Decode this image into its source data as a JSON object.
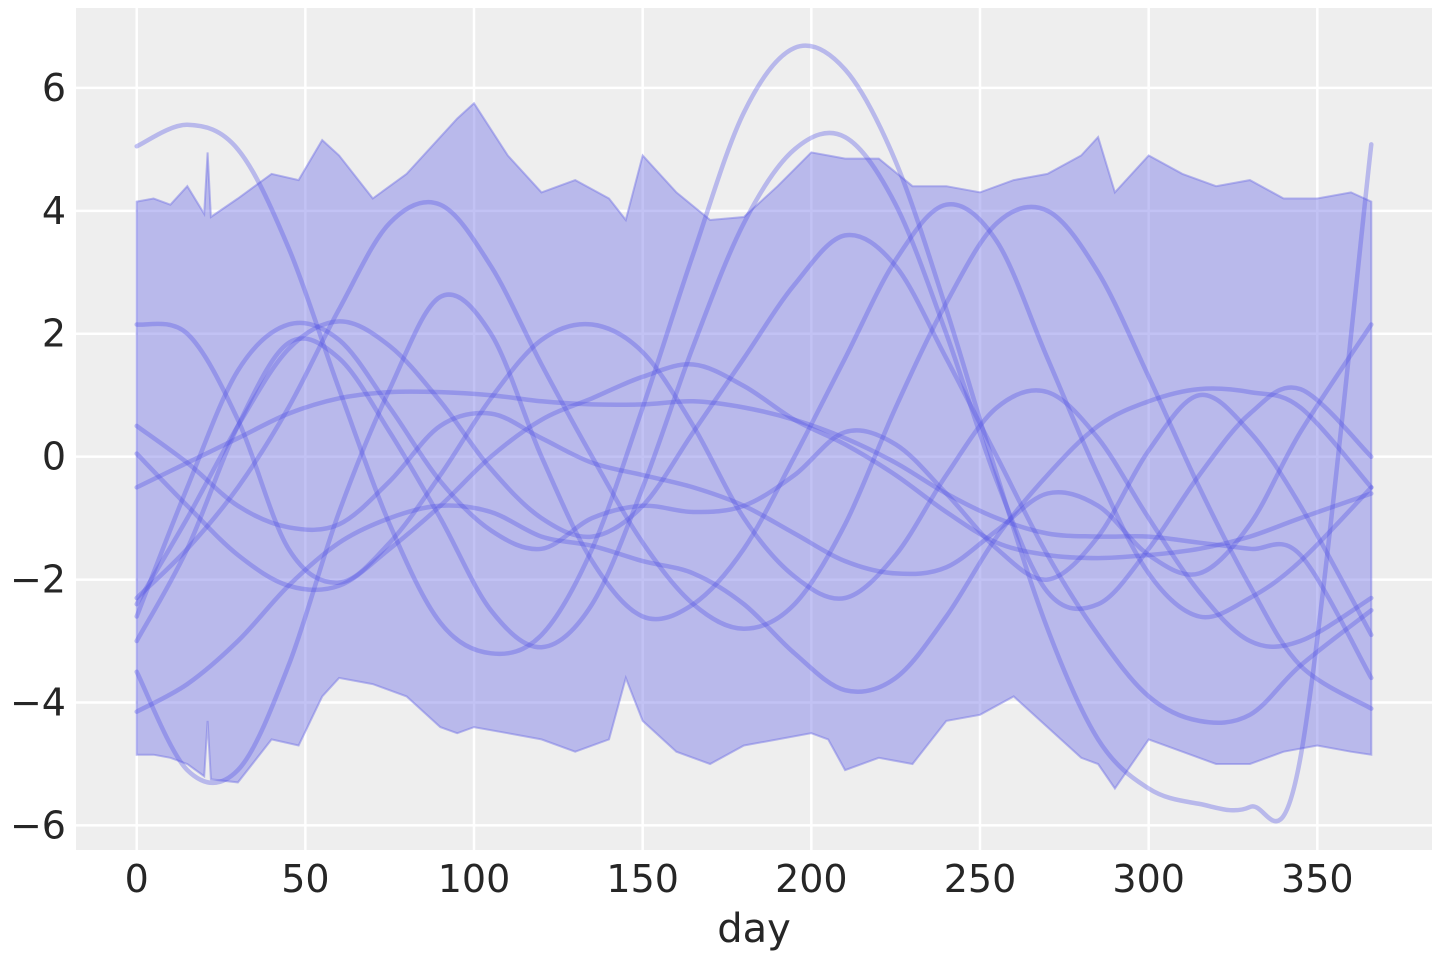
{
  "chart_data": {
    "type": "line",
    "title": "",
    "xlabel": "day",
    "ylabel": "",
    "xlim": [
      -18,
      384
    ],
    "ylim": [
      -6.4,
      7.3
    ],
    "x_ticks": [
      0,
      50,
      100,
      150,
      200,
      250,
      300,
      350
    ],
    "y_ticks": [
      -6,
      -4,
      -2,
      0,
      2,
      4,
      6
    ],
    "grid": true,
    "background": "#EEEEEE",
    "grid_color": "#FFFFFF",
    "series_color": "#5252E6",
    "band_color": "#7878E6",
    "band": {
      "x": [
        0,
        5,
        10,
        15,
        20,
        21,
        22,
        30,
        40,
        48,
        55,
        60,
        70,
        80,
        90,
        95,
        100,
        110,
        120,
        130,
        140,
        145,
        150,
        160,
        170,
        180,
        190,
        200,
        205,
        210,
        220,
        230,
        240,
        250,
        260,
        270,
        280,
        285,
        290,
        300,
        310,
        320,
        330,
        340,
        350,
        360,
        366
      ],
      "upper": [
        4.15,
        4.2,
        4.1,
        4.4,
        3.95,
        4.95,
        3.9,
        4.2,
        4.6,
        4.5,
        5.15,
        4.9,
        4.2,
        4.6,
        5.2,
        5.5,
        5.75,
        4.9,
        4.3,
        4.5,
        4.2,
        3.85,
        4.9,
        4.3,
        3.85,
        3.9,
        4.4,
        4.95,
        4.9,
        4.85,
        4.85,
        4.4,
        4.4,
        4.3,
        4.5,
        4.6,
        4.9,
        5.2,
        4.3,
        4.9,
        4.6,
        4.4,
        4.5,
        4.2,
        4.2,
        4.3,
        4.15
      ],
      "lower": [
        -4.85,
        -4.85,
        -4.9,
        -5.0,
        -5.2,
        -4.3,
        -5.25,
        -5.3,
        -4.6,
        -4.7,
        -3.9,
        -3.6,
        -3.7,
        -3.9,
        -4.4,
        -4.5,
        -4.4,
        -4.5,
        -4.6,
        -4.8,
        -4.6,
        -3.6,
        -4.3,
        -4.8,
        -5.0,
        -4.7,
        -4.6,
        -4.5,
        -4.6,
        -5.1,
        -4.9,
        -5.0,
        -4.3,
        -4.2,
        -3.9,
        -4.4,
        -4.9,
        -5.0,
        -5.4,
        -4.6,
        -4.8,
        -5.0,
        -5.0,
        -4.8,
        -4.7,
        -4.8,
        -4.85
      ]
    },
    "x": [
      0,
      15,
      30,
      45,
      60,
      75,
      90,
      105,
      120,
      135,
      150,
      165,
      180,
      195,
      210,
      225,
      240,
      255,
      270,
      285,
      300,
      315,
      330,
      345,
      366
    ],
    "series": [
      {
        "values": [
          5.05,
          5.4,
          5.0,
          3.4,
          1.1,
          -1.1,
          -2.7,
          -3.2,
          -2.9,
          -1.5,
          0.8,
          3.3,
          5.6,
          6.65,
          6.3,
          4.8,
          2.4,
          -0.3,
          -2.8,
          -4.6,
          -5.4,
          -5.65,
          -5.7,
          -4.9,
          5.08
        ]
      },
      {
        "values": [
          -3.5,
          -5.1,
          -5.1,
          -3.4,
          -0.9,
          1.1,
          2.6,
          2.0,
          0.0,
          -1.7,
          -2.6,
          -2.4,
          -1.5,
          0.0,
          1.6,
          3.2,
          4.1,
          3.5,
          1.6,
          -0.3,
          -1.9,
          -2.6,
          -2.3,
          -1.7,
          -0.5
        ]
      },
      {
        "values": [
          2.15,
          2.0,
          0.6,
          -1.5,
          -2.05,
          -1.4,
          -0.3,
          0.95,
          1.9,
          2.15,
          1.7,
          0.5,
          -1.0,
          -1.95,
          -2.3,
          -1.6,
          -0.3,
          0.8,
          1.05,
          0.3,
          -1.0,
          -2.2,
          -3.0,
          -3.0,
          -2.3
        ]
      },
      {
        "values": [
          0.5,
          -0.1,
          -0.8,
          -1.15,
          -1.1,
          -0.4,
          0.5,
          0.7,
          0.3,
          -0.1,
          -0.3,
          -0.5,
          -0.8,
          -1.25,
          -1.7,
          -1.9,
          -1.8,
          -1.2,
          -0.6,
          -0.8,
          -1.6,
          -1.9,
          -1.1,
          0.4,
          2.15
        ]
      },
      {
        "values": [
          -4.15,
          -3.7,
          -3.0,
          -2.1,
          -1.4,
          -1.0,
          -0.8,
          -0.9,
          -1.3,
          -1.45,
          -1.7,
          -1.9,
          -2.4,
          -3.2,
          -3.8,
          -3.6,
          -2.6,
          -1.3,
          -0.3,
          0.5,
          0.9,
          1.1,
          1.05,
          0.8,
          -0.5
        ]
      },
      {
        "values": [
          -2.3,
          -1.5,
          -0.5,
          0.8,
          2.4,
          3.8,
          4.1,
          3.1,
          1.5,
          0.0,
          -1.4,
          -2.4,
          -2.8,
          -2.4,
          -1.1,
          0.8,
          2.5,
          3.8,
          4.0,
          3.0,
          1.3,
          -0.5,
          -2.1,
          -3.4,
          -4.1
        ]
      },
      {
        "values": [
          0.05,
          -0.8,
          -1.6,
          -2.1,
          -2.1,
          -1.5,
          -0.8,
          0.0,
          0.6,
          0.95,
          1.3,
          1.5,
          1.15,
          0.6,
          0.2,
          -0.3,
          -0.9,
          -1.4,
          -1.6,
          -1.65,
          -1.6,
          -1.5,
          -1.3,
          -1.0,
          -0.6
        ]
      },
      {
        "values": [
          -0.5,
          -0.1,
          0.3,
          0.7,
          0.95,
          1.05,
          1.05,
          1.0,
          0.9,
          0.85,
          0.85,
          0.9,
          0.8,
          0.6,
          0.3,
          -0.1,
          -0.6,
          -1.0,
          -1.25,
          -1.3,
          -1.3,
          -1.4,
          -1.5,
          -1.6,
          -3.6
        ]
      },
      {
        "values": [
          -3.0,
          -1.5,
          0.5,
          1.85,
          1.6,
          0.4,
          -1.0,
          -2.5,
          -3.1,
          -2.4,
          -0.5,
          1.8,
          3.8,
          5.0,
          5.2,
          4.1,
          2.0,
          -0.4,
          -2.2,
          -2.4,
          -1.5,
          -0.3,
          0.7,
          1.1,
          0.0
        ]
      },
      {
        "values": [
          -2.6,
          -0.5,
          1.4,
          2.15,
          1.9,
          0.8,
          -0.4,
          -1.2,
          -1.5,
          -1.0,
          -0.8,
          -0.9,
          -0.8,
          -0.3,
          0.4,
          0.2,
          -0.6,
          -1.5,
          -2.0,
          -1.3,
          0.1,
          1.0,
          0.4,
          -0.8,
          -2.9
        ]
      },
      {
        "values": [
          -2.4,
          -1.0,
          0.5,
          1.75,
          2.2,
          1.8,
          0.9,
          -0.2,
          -1.0,
          -1.3,
          -0.8,
          0.4,
          1.6,
          2.8,
          3.6,
          3.1,
          1.6,
          0.0,
          -1.6,
          -2.9,
          -3.9,
          -4.3,
          -4.2,
          -3.4,
          -2.5
        ]
      }
    ]
  }
}
